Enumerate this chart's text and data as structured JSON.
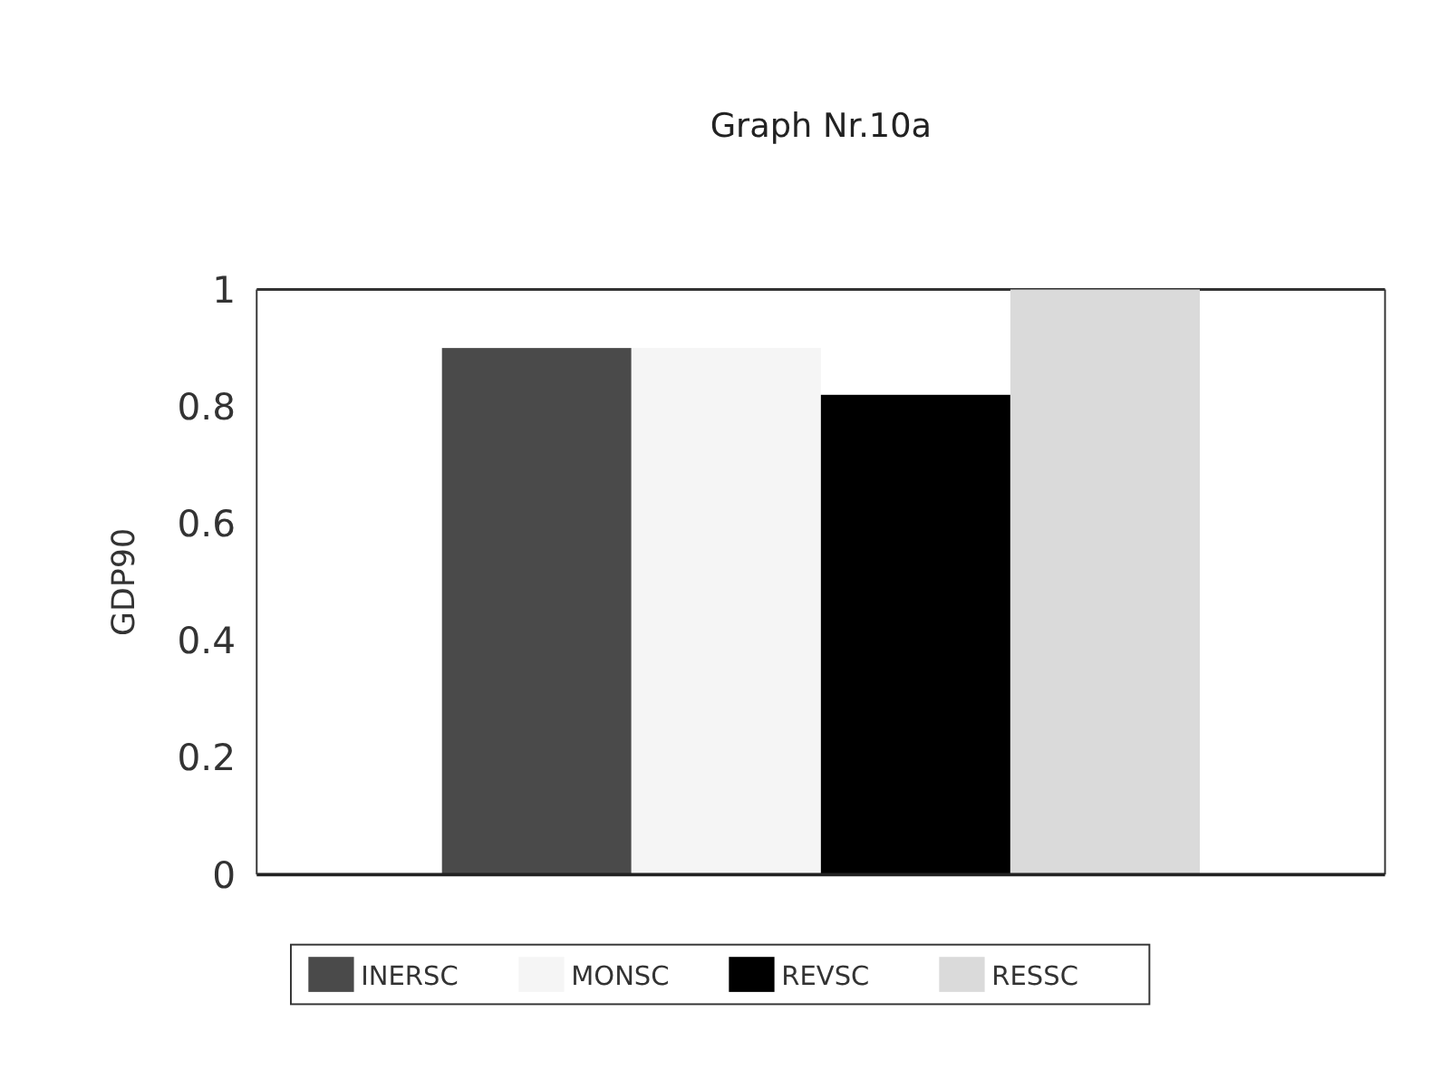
{
  "chart_data": {
    "type": "bar",
    "title": "Graph Nr.10a",
    "ylabel": "GDP90",
    "categories": [
      null
    ],
    "series": [
      {
        "name": "INERSC",
        "color": "#4a4a4a",
        "values": [
          0.9
        ]
      },
      {
        "name": "MONSC",
        "color": "#f5f5f5",
        "values": [
          0.9
        ]
      },
      {
        "name": "REVSC",
        "color": "#000000",
        "values": [
          0.82
        ]
      },
      {
        "name": "RESSC",
        "color": "#dadada",
        "values": [
          1
        ]
      }
    ],
    "ylim": [
      0,
      1
    ],
    "yticks": [
      0,
      {
        "value": 0.2,
        "label": "0.2"
      },
      {
        "value": 0.4,
        "label": "0.4"
      },
      {
        "value": 0.6,
        "label": "0.6"
      },
      {
        "value": 0.8,
        "label": "0.8"
      },
      1
    ],
    "legend": "bottom",
    "grid": false
  }
}
